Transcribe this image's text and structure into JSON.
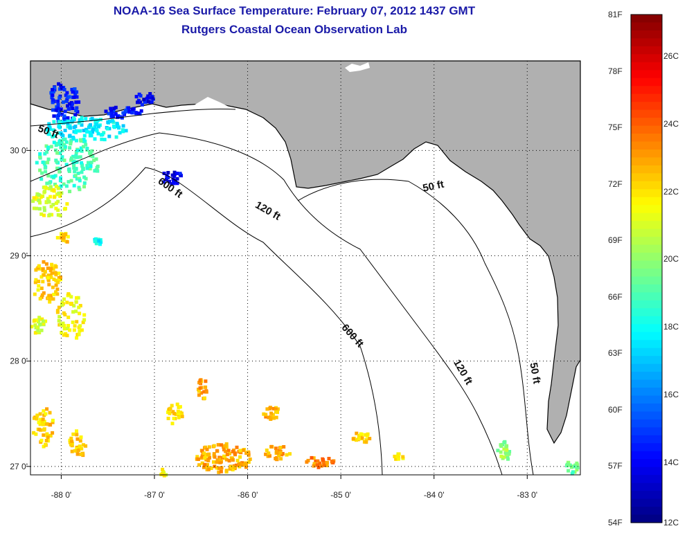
{
  "header": {
    "title": "NOAA-16 Sea Surface Temperature:  February 07, 2012 1437 GMT",
    "subtitle": "Rutgers Coastal Ocean Observation Lab"
  },
  "map": {
    "lon_range": [
      -88.33,
      -82.43
    ],
    "lat_range": [
      26.92,
      30.85
    ],
    "lon_ticks": [
      {
        "value": -88,
        "label": "-88 0'"
      },
      {
        "value": -87,
        "label": "-87 0'"
      },
      {
        "value": -86,
        "label": "-86 0'"
      },
      {
        "value": -85,
        "label": "-85 0'"
      },
      {
        "value": -84,
        "label": "-84 0'"
      },
      {
        "value": -83,
        "label": "-83 0'"
      }
    ],
    "lat_ticks": [
      {
        "value": 30,
        "label": "30 0'"
      },
      {
        "value": 29,
        "label": "29 0'"
      },
      {
        "value": 28,
        "label": "28 0'"
      },
      {
        "value": 27,
        "label": "27 0'"
      }
    ],
    "grid": "dotted",
    "colors": {
      "land": "#b0b0b0",
      "water": "#ffffff",
      "contour": "#000000"
    },
    "contour_labels": [
      {
        "text": "50 ft",
        "lon": -88.15,
        "lat": 30.15,
        "rot": 20
      },
      {
        "text": "600 ft",
        "lon": -86.85,
        "lat": 29.62,
        "rot": 35
      },
      {
        "text": "120 ft",
        "lon": -85.8,
        "lat": 29.4,
        "rot": 30
      },
      {
        "text": "50 ft",
        "lon": -84.0,
        "lat": 29.63,
        "rot": -12
      },
      {
        "text": "600 ft",
        "lon": -84.9,
        "lat": 28.22,
        "rot": 48
      },
      {
        "text": "120 ft",
        "lon": -83.72,
        "lat": 27.88,
        "rot": 60
      },
      {
        "text": "50 ft",
        "lon": -82.95,
        "lat": 27.88,
        "rot": 80
      }
    ]
  },
  "colorbar": {
    "temp_min_f": 54,
    "temp_max_f": 81,
    "f_labels": [
      "81F",
      "78F",
      "75F",
      "72F",
      "69F",
      "66F",
      "63F",
      "60F",
      "57F",
      "54F"
    ],
    "c_labels": [
      "26C",
      "24C",
      "22C",
      "20C",
      "18C",
      "16C",
      "14C",
      "12C"
    ]
  }
}
